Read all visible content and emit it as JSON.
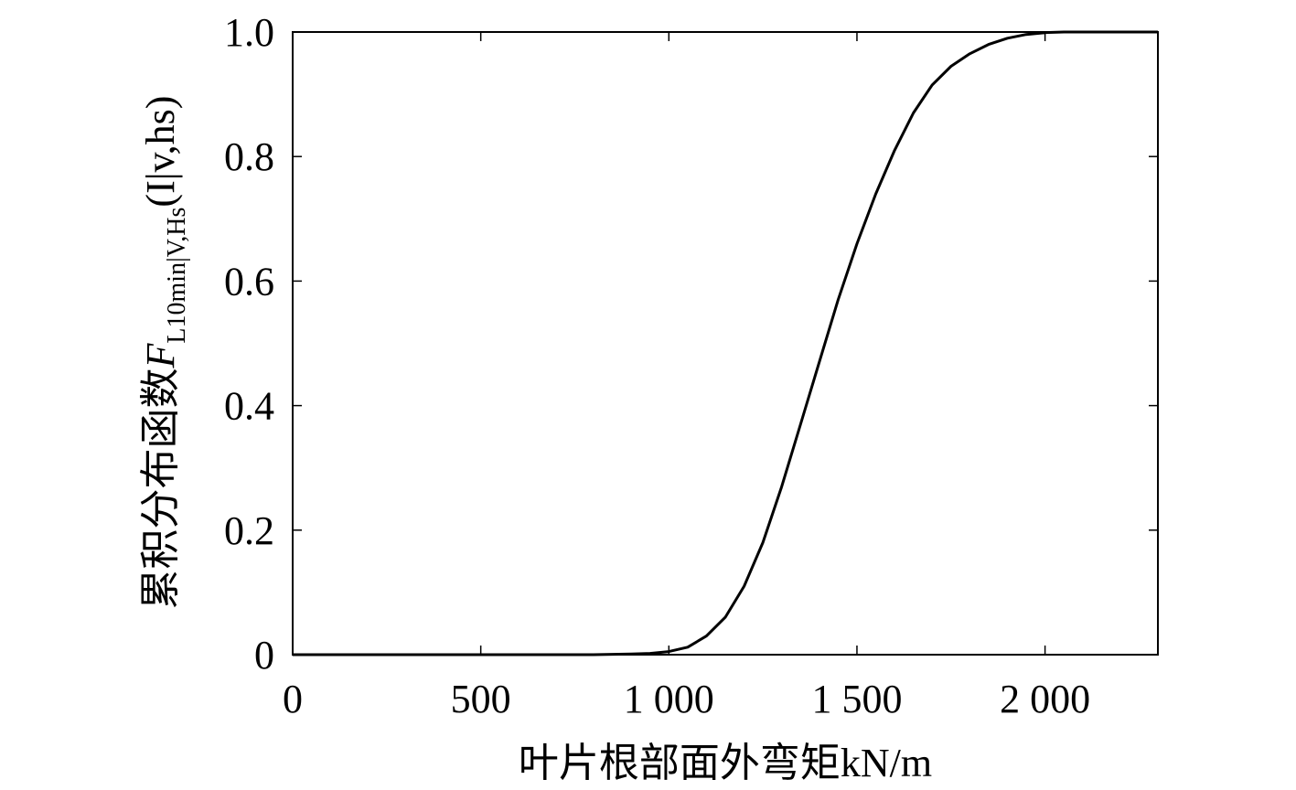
{
  "chart_data": {
    "type": "line",
    "xlabel": "叶片根部面外弯矩kN/m",
    "ylabel": {
      "prefix": "累积分布函数",
      "symbol": "F",
      "subscript": "L10min|V,Hs",
      "suffix": "(I|v,hs)"
    },
    "xlim": [
      0,
      2300
    ],
    "ylim": [
      0,
      1
    ],
    "x_ticks": [
      {
        "value": 0,
        "label": "0"
      },
      {
        "value": 500,
        "label": "500"
      },
      {
        "value": 1000,
        "label": "1 000"
      },
      {
        "value": 1500,
        "label": "1 500"
      },
      {
        "value": 2000,
        "label": "2 000"
      }
    ],
    "y_ticks": [
      {
        "value": 0,
        "label": "0"
      },
      {
        "value": 0.2,
        "label": "0.2"
      },
      {
        "value": 0.4,
        "label": "0.4"
      },
      {
        "value": 0.6,
        "label": "0.6"
      },
      {
        "value": 0.8,
        "label": "0.8"
      },
      {
        "value": 1.0,
        "label": "1.0"
      }
    ],
    "grid": false,
    "series": [
      {
        "color": "#000000",
        "x": [
          0,
          500,
          800,
          900,
          950,
          1000,
          1050,
          1100,
          1150,
          1200,
          1250,
          1300,
          1350,
          1400,
          1450,
          1500,
          1550,
          1600,
          1650,
          1700,
          1750,
          1800,
          1850,
          1900,
          1950,
          2000,
          2050,
          2100,
          2200,
          2300
        ],
        "y": [
          0,
          0,
          0,
          0.001,
          0.002,
          0.005,
          0.012,
          0.03,
          0.06,
          0.11,
          0.18,
          0.27,
          0.37,
          0.47,
          0.57,
          0.66,
          0.74,
          0.81,
          0.87,
          0.915,
          0.945,
          0.965,
          0.98,
          0.99,
          0.996,
          0.999,
          1.0,
          1.0,
          1.0,
          1.0
        ]
      }
    ]
  }
}
